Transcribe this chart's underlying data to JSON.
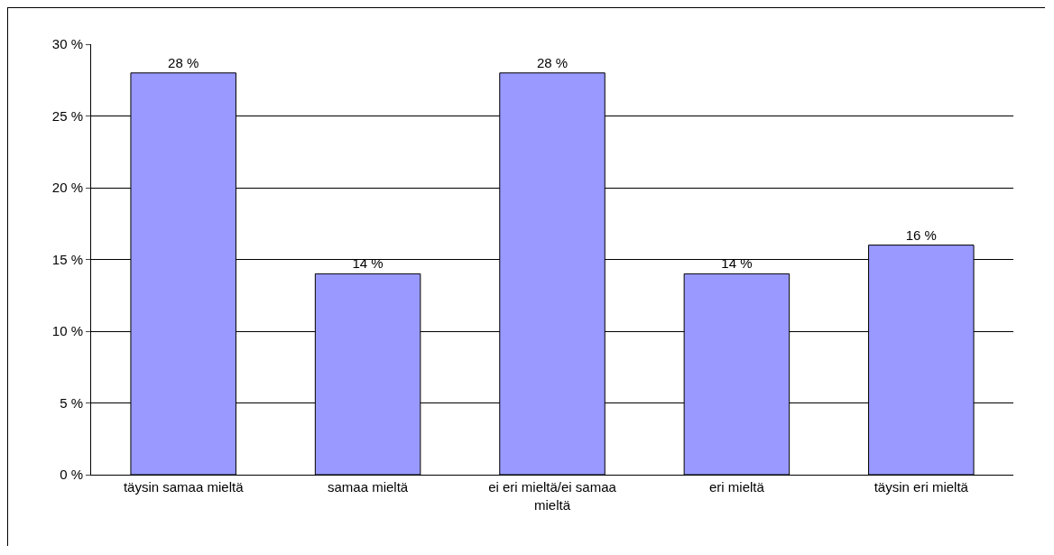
{
  "chart_data": {
    "type": "bar",
    "categories": [
      "täysin samaa mieltä",
      "samaa mieltä",
      "ei eri mieltä/ei samaa mieltä",
      "eri mieltä",
      "täysin eri mieltä"
    ],
    "values": [
      28,
      14,
      28,
      14,
      16
    ],
    "value_labels": [
      "28 %",
      "14 %",
      "28 %",
      "14 %",
      "16 %"
    ],
    "color": "#9999ff",
    "ylim": [
      0,
      30
    ],
    "yticks": [
      {
        "value": 0,
        "label": "0 %"
      },
      {
        "value": 5,
        "label": "5 %"
      },
      {
        "value": 10,
        "label": "10 %"
      },
      {
        "value": 15,
        "label": "15 %"
      },
      {
        "value": 20,
        "label": "20 %"
      },
      {
        "value": 25,
        "label": "25 %"
      },
      {
        "value": 30,
        "label": "30 %"
      }
    ],
    "grid": "y"
  }
}
